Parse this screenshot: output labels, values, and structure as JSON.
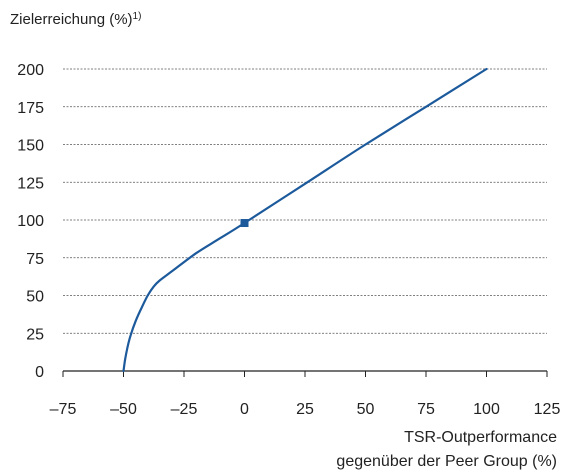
{
  "chart_data": {
    "type": "line",
    "title": "Zielerreichung (%)",
    "title_footnote": "1)",
    "xlabel_line1": "TSR-Outperformance",
    "xlabel_line2": "gegenüber der Peer Group (%)",
    "xlim": [
      -75,
      125
    ],
    "ylim": [
      0,
      200
    ],
    "x_ticks": [
      -75,
      -50,
      -25,
      0,
      25,
      50,
      75,
      100,
      125
    ],
    "x_tick_labels": [
      "–75",
      "–50",
      "–25",
      "0",
      "25",
      "50",
      "75",
      "100",
      "125"
    ],
    "y_ticks": [
      0,
      25,
      50,
      75,
      100,
      125,
      150,
      175,
      200
    ],
    "y_tick_labels": [
      "0",
      "25",
      "50",
      "75",
      "100",
      "125",
      "150",
      "175",
      "200"
    ],
    "grid": "horizontal-dashed",
    "series": [
      {
        "color": "#1c5a9c",
        "x": [
          -50,
          -49.3,
          -48.3,
          -47,
          -45,
          -42.5,
          -40,
          -37.5,
          -35,
          -30,
          -20,
          -10,
          0,
          25,
          50,
          75,
          100
        ],
        "y": [
          0,
          8,
          16,
          24,
          33,
          42,
          50,
          56,
          60,
          66,
          78,
          88,
          98,
          124,
          150,
          175,
          200
        ]
      }
    ],
    "marker": {
      "x": 0,
      "y": 98,
      "color": "#1c5a9c"
    }
  }
}
